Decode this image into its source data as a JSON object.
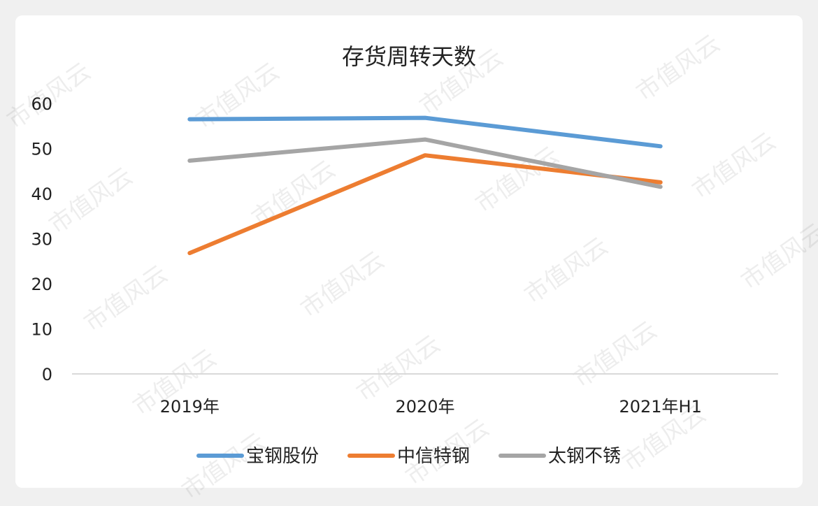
{
  "watermark": "市值风云",
  "chart_data": {
    "type": "line",
    "title": "存货周转天数",
    "categories": [
      "2019年",
      "2020年",
      "2021年H1"
    ],
    "series": [
      {
        "name": "宝钢股份",
        "values": [
          56.5,
          56.8,
          50.5
        ],
        "color": "#5b9bd5"
      },
      {
        "name": "中信特钢",
        "values": [
          26.8,
          48.5,
          42.5
        ],
        "color": "#ed7d31"
      },
      {
        "name": "太钢不锈",
        "values": [
          47.3,
          52.0,
          41.5
        ],
        "color": "#a5a5a5"
      }
    ],
    "ylim": [
      0,
      60
    ],
    "yticks": [
      0,
      10,
      20,
      30,
      40,
      50,
      60
    ],
    "grid": false,
    "legend": "bottom"
  }
}
